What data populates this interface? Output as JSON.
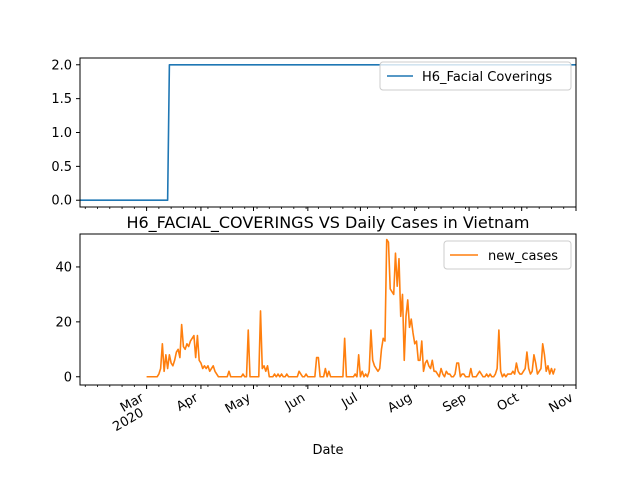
{
  "chart_data": [
    {
      "type": "line",
      "title": "",
      "xlabel": "",
      "ylabel": "",
      "x_range": [
        "2020-01-23",
        "2020-11-01"
      ],
      "ylim": [
        -0.1,
        2.1
      ],
      "yticks": [
        "0.0",
        "0.5",
        "1.0",
        "1.5",
        "2.0"
      ],
      "grid": false,
      "legend_position": "top-right",
      "series": [
        {
          "name": "H6_Facial Coverings",
          "color": "#1f77b4",
          "points": [
            [
              "2020-01-23",
              0
            ],
            [
              "2020-03-13",
              0
            ],
            [
              "2020-03-14",
              2
            ],
            [
              "2020-11-01",
              2
            ]
          ]
        }
      ]
    },
    {
      "type": "line",
      "title": "H6_FACIAL_COVERINGS VS Daily Cases in Vietnam",
      "xlabel": "Date",
      "ylabel": "",
      "x_range": [
        "2020-01-23",
        "2020-11-01"
      ],
      "ylim": [
        -3,
        52
      ],
      "yticks": [
        "0",
        "20",
        "40"
      ],
      "xticks": [
        {
          "date": "2020-03-01",
          "label": "Mar",
          "sublabel": "2020"
        },
        {
          "date": "2020-04-01",
          "label": "Apr"
        },
        {
          "date": "2020-05-01",
          "label": "May"
        },
        {
          "date": "2020-06-01",
          "label": "Jun"
        },
        {
          "date": "2020-07-01",
          "label": "Jul"
        },
        {
          "date": "2020-08-01",
          "label": "Aug"
        },
        {
          "date": "2020-09-01",
          "label": "Sep"
        },
        {
          "date": "2020-10-01",
          "label": "Oct"
        },
        {
          "date": "2020-11-01",
          "label": "Nov"
        }
      ],
      "grid": false,
      "legend_position": "top-right",
      "series": [
        {
          "name": "new_cases",
          "color": "#ff7f0e",
          "start_date": "2020-03-01",
          "values": [
            0,
            0,
            0,
            0,
            0,
            0,
            0,
            1,
            3,
            12,
            2,
            8,
            3,
            8,
            5,
            4,
            6,
            9,
            10,
            7,
            19,
            11,
            10,
            12,
            11,
            13,
            14,
            15,
            7,
            15,
            6,
            5,
            3,
            4,
            3,
            4,
            2,
            3,
            4,
            2,
            1,
            0,
            0,
            0,
            0,
            0,
            0,
            2,
            0,
            0,
            0,
            0,
            0,
            0,
            0,
            1,
            0,
            0,
            17,
            0,
            0,
            0,
            0,
            0,
            0,
            24,
            3,
            4,
            2,
            4,
            0,
            0,
            0,
            1,
            0,
            1,
            0,
            1,
            0,
            0,
            1,
            0,
            0,
            0,
            0,
            0,
            0,
            2,
            1,
            0,
            0,
            1,
            0,
            0,
            0,
            0,
            0,
            7,
            7,
            0,
            0,
            0,
            3,
            0,
            2,
            0,
            0,
            0,
            0,
            0,
            0,
            0,
            0,
            14,
            0,
            0,
            0,
            0,
            0,
            1,
            0,
            8,
            0,
            2,
            0,
            1,
            0,
            2,
            17,
            6,
            4,
            3,
            2,
            3,
            10,
            14,
            13,
            50,
            49,
            32,
            31,
            30,
            45,
            33,
            43,
            22,
            30,
            6,
            22,
            28,
            18,
            21,
            16,
            12,
            13,
            6,
            6,
            13,
            2,
            5,
            6,
            4,
            3,
            6,
            2,
            2,
            1,
            0,
            3,
            1,
            0,
            2,
            1,
            1,
            0,
            0,
            1,
            5,
            5,
            0,
            1,
            1,
            0,
            0,
            0,
            3,
            0,
            0,
            0,
            1,
            2,
            1,
            0,
            0,
            1,
            0,
            1,
            0,
            0,
            1,
            3,
            17,
            2,
            0,
            1,
            0,
            1,
            1,
            1,
            2,
            1,
            5,
            2,
            1,
            1,
            2,
            3,
            9,
            3,
            1,
            2,
            8,
            5,
            1,
            2,
            3,
            12,
            8,
            2,
            4,
            1,
            3,
            1,
            3
          ]
        }
      ]
    }
  ]
}
